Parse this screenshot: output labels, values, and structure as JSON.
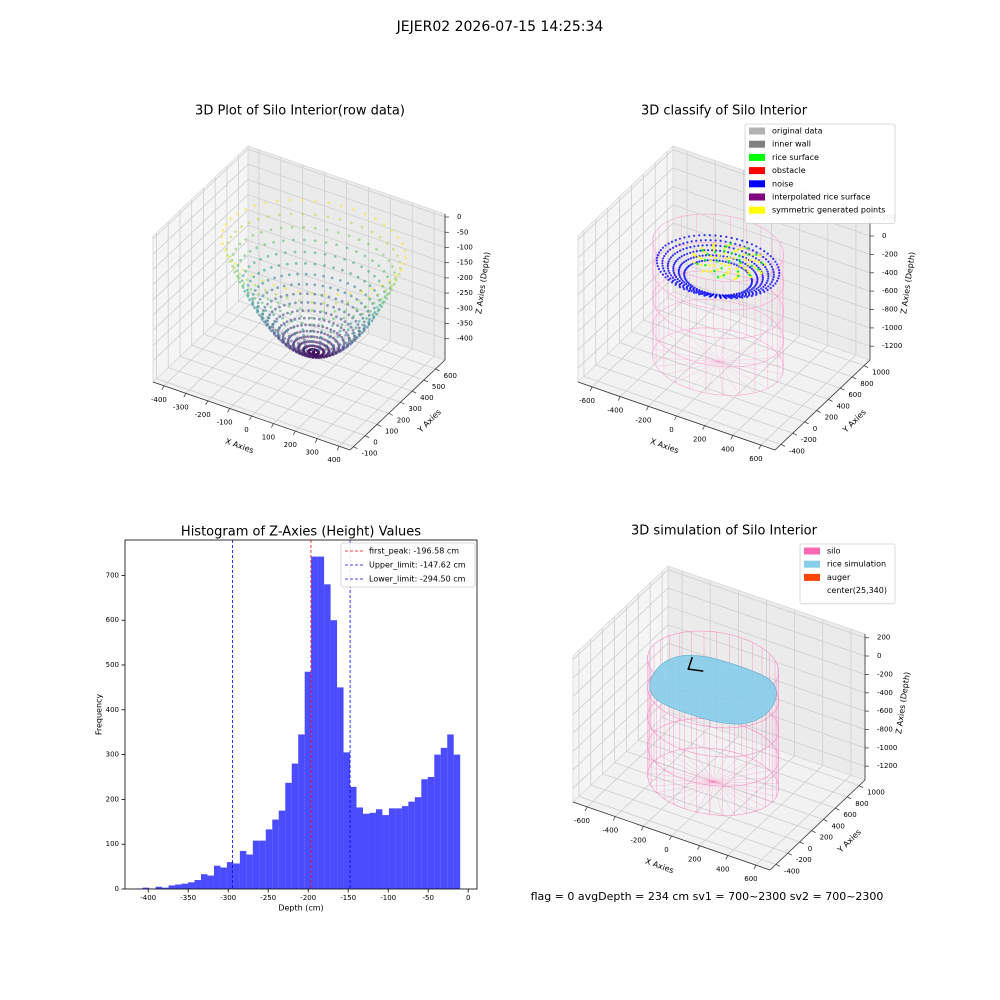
{
  "suptitle": "JEJER02 2026-07-15 14:25:34",
  "footer": "flag = 0     avgDepth = 234 cm  sv1 = 700~2300  sv2 = 700~2300",
  "chart_data": [
    {
      "type": "scatter3d",
      "title": "3D Plot of Silo Interior(row data)",
      "xlabel": "X Axies",
      "ylabel": "Y Axies",
      "zlabel": "Z Axies (Depth)",
      "xlim": [
        -450,
        450
      ],
      "ylim": [
        -130,
        680
      ],
      "zlim": [
        -470,
        10
      ],
      "xticks": [
        -400,
        -300,
        -200,
        -100,
        0,
        100,
        200,
        300,
        400
      ],
      "yticks": [
        -100,
        0,
        100,
        200,
        300,
        400,
        500,
        600
      ],
      "zticks": [
        0,
        -50,
        -100,
        -150,
        -200,
        -250,
        -300,
        -350,
        -400
      ]
    },
    {
      "type": "classify3d",
      "title": "3D classify of Silo Interior",
      "xlabel": "X Axies",
      "ylabel": "Y Axies",
      "zlabel": "Z Axies (Depth)",
      "xlim": [
        -700,
        700
      ],
      "ylim": [
        -500,
        1100
      ],
      "zlim": [
        -1350,
        240
      ],
      "xticks": [
        -600,
        -400,
        -200,
        0,
        200,
        400,
        600
      ],
      "yticks": [
        -400,
        -200,
        0,
        200,
        400,
        600,
        800,
        1000
      ],
      "zticks": [
        200,
        0,
        -200,
        -400,
        -600,
        -800,
        -1000,
        -1200
      ],
      "legend_loc": "upper right",
      "legend": [
        {
          "name": "original data",
          "color": "#b3b3b3"
        },
        {
          "name": "inner wall",
          "color": "#808080"
        },
        {
          "name": "rice surface",
          "color": "#00ff00"
        },
        {
          "name": "obstacle",
          "color": "#ff0000"
        },
        {
          "name": "noise",
          "color": "#0000ff"
        },
        {
          "name": "interpolated rice surface",
          "color": "#800080"
        },
        {
          "name": "symmetric generated points",
          "color": "#ffff00"
        }
      ]
    },
    {
      "type": "histogram",
      "title": "Histogram of Z-Axies (Height) Values",
      "xlabel": "Depth (cm)",
      "ylabel": "Frequency",
      "color": "#0000ff",
      "xlim": [
        -429,
        11
      ],
      "ylim": [
        0,
        779
      ],
      "xticks": [
        -400,
        -350,
        -300,
        -250,
        -200,
        -150,
        -100,
        -50,
        0
      ],
      "yticks": [
        0,
        100,
        200,
        300,
        400,
        500,
        600,
        700
      ],
      "bins": [
        -415,
        -406.9,
        -398.8,
        -390.7,
        -382.6,
        -374.5,
        -366.4,
        -358.3,
        -350.2,
        -342.1,
        -334,
        -325.9,
        -317.8,
        -309.7,
        -301.6,
        -293.5,
        -285.4,
        -277.3,
        -269.2,
        -261.1,
        -253,
        -244.9,
        -236.8,
        -228.7,
        -220.6,
        -212.5,
        -204.4,
        -196.3,
        -188.2,
        -180.1,
        -172,
        -163.9,
        -155.8,
        -147.7,
        -139.6,
        -131.5,
        -123.4,
        -115.3,
        -107.2,
        -99.1,
        -91,
        -82.9,
        -74.8,
        -66.7,
        -58.6,
        -50.5,
        -42.4,
        -34.3,
        -26.2,
        -18.1,
        -10
      ],
      "values": [
        1,
        3,
        1,
        5,
        3,
        8,
        10,
        12,
        15,
        20,
        33,
        30,
        52,
        48,
        60,
        57,
        85,
        77,
        108,
        108,
        133,
        155,
        175,
        237,
        280,
        345,
        485,
        742,
        742,
        680,
        600,
        450,
        305,
        228,
        182,
        168,
        170,
        178,
        165,
        180,
        180,
        185,
        195,
        205,
        245,
        250,
        300,
        315,
        345,
        300
      ],
      "legend_loc": "upper right",
      "vlines": [
        {
          "value": -196.58,
          "label": "first_peak: -196.58 cm",
          "color": "#ff0000"
        },
        {
          "value": -147.62,
          "label": "Upper_limit: -147.62 cm",
          "color": "#0000ff"
        },
        {
          "value": -294.5,
          "label": "Lower_limit: -294.50 cm",
          "color": "#0000ff"
        }
      ]
    },
    {
      "type": "simulation3d",
      "title": "3D simulation of Silo Interior",
      "xlabel": "X Axies",
      "ylabel": "Y Axies",
      "zlabel": "Z Axies (Depth)",
      "xlim": [
        -700,
        700
      ],
      "ylim": [
        -500,
        1100
      ],
      "zlim": [
        -1350,
        240
      ],
      "xticks": [
        -600,
        -400,
        -200,
        0,
        200,
        400,
        600
      ],
      "yticks": [
        -400,
        -200,
        0,
        200,
        400,
        600,
        800,
        1000
      ],
      "zticks": [
        200,
        0,
        -200,
        -400,
        -600,
        -800,
        -1000,
        -1200
      ],
      "legend_loc": "upper right",
      "legend": [
        {
          "name": "silo",
          "color": "#ff69b4"
        },
        {
          "name": "rice simulation",
          "color": "#87ceeb"
        },
        {
          "name": "auger",
          "color": "#ff4500"
        },
        {
          "name": "center(25,340)",
          "color": "#ffffff"
        }
      ]
    }
  ]
}
